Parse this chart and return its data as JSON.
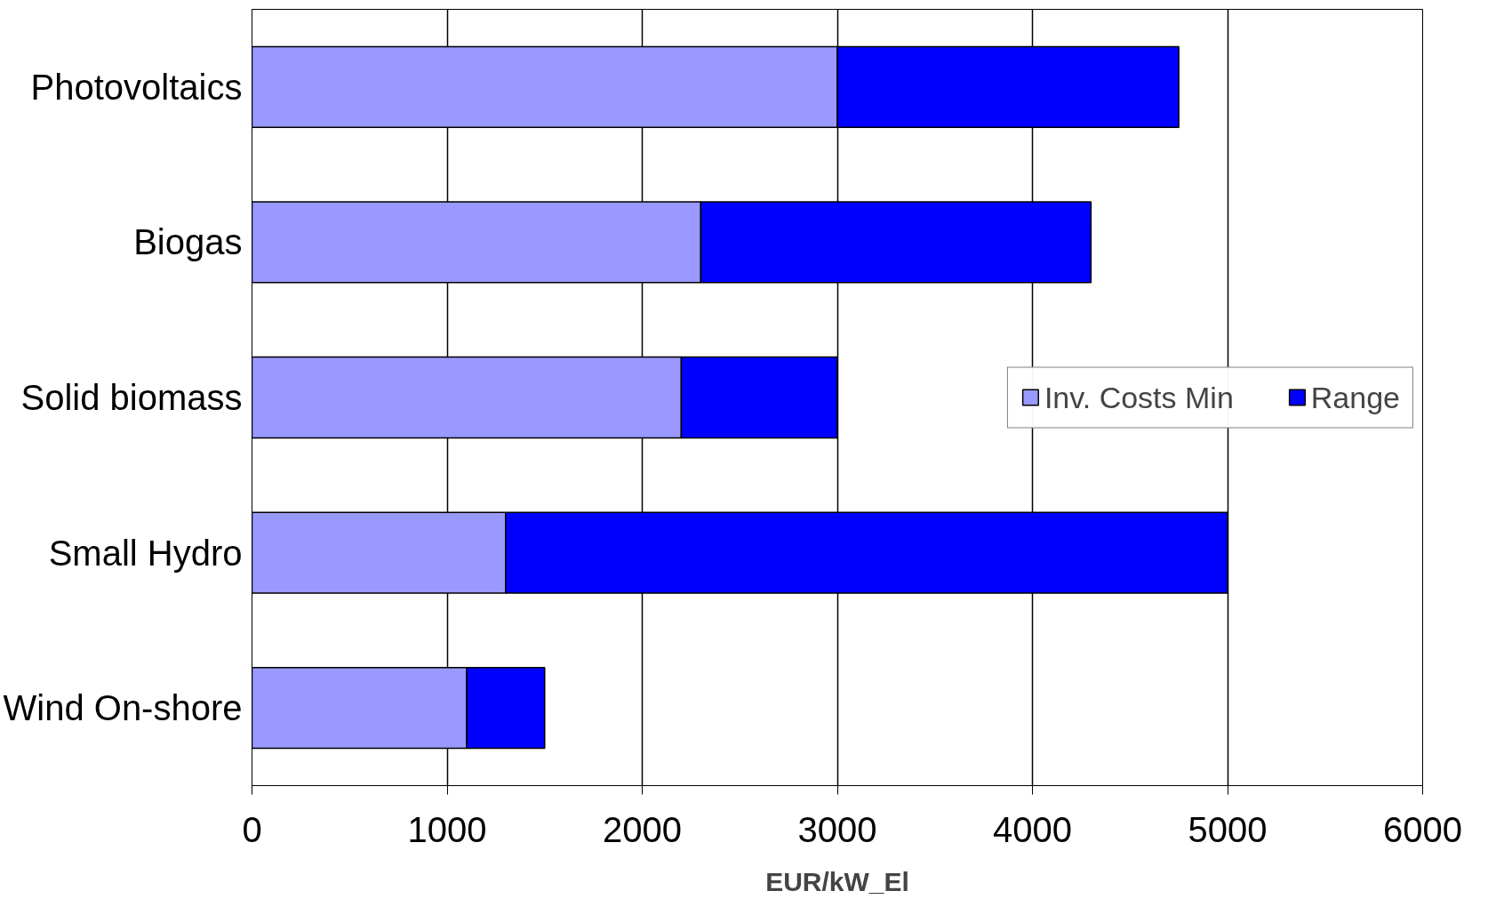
{
  "chart_data": {
    "type": "bar",
    "orientation": "horizontal",
    "stacked": true,
    "xlabel": "EUR/kW_El",
    "categories": [
      "Photovoltaics",
      "Biogas",
      "Solid biomass",
      "Small Hydro",
      "Wind On-shore"
    ],
    "series": [
      {
        "name": "Inv. Costs Min",
        "color": "#9999ff",
        "values": [
          3000,
          2300,
          2200,
          1300,
          1100
        ]
      },
      {
        "name": "Range",
        "color": "#0000ff",
        "values": [
          1750,
          2000,
          800,
          3700,
          400
        ]
      }
    ],
    "xlim": [
      0,
      6000
    ],
    "xticks": [
      0,
      1000,
      2000,
      3000,
      4000,
      5000,
      6000
    ],
    "grid": "x",
    "legend": "right"
  }
}
